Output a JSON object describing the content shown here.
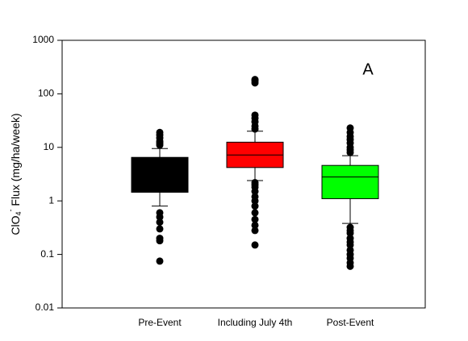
{
  "chart_data": {
    "type": "box",
    "y_label": {
      "base": "ClO",
      "sub": "4",
      "sup": "-",
      "rest": " Flux (mg/ha/week)"
    },
    "annotation": "A",
    "log_scale": true,
    "ylim": [
      0.01,
      1000
    ],
    "yticks": [
      0.01,
      0.1,
      1,
      10,
      100,
      1000
    ],
    "categories": [
      "Pre-Event",
      "Including July 4th",
      "Post-Event"
    ],
    "series": [
      {
        "color": "#000000",
        "q1": 1.45,
        "median": 3.5,
        "q3": 6.5,
        "whisker_low": 0.8,
        "whisker_high": 9.5,
        "outliers": [
          19,
          17,
          15,
          13,
          12,
          11,
          0.6,
          0.5,
          0.4,
          0.3,
          0.2,
          0.18,
          0.075
        ]
      },
      {
        "color": "#ff0000",
        "q1": 4.2,
        "median": 7.2,
        "q3": 12.5,
        "whisker_low": 2.4,
        "whisker_high": 20,
        "outliers": [
          185,
          175,
          160,
          40,
          35,
          30,
          25,
          22,
          2.2,
          2.0,
          1.8,
          1.5,
          1.2,
          1.0,
          0.8,
          0.6,
          0.45,
          0.35,
          0.28,
          0.15
        ]
      },
      {
        "color": "#00ff00",
        "q1": 1.1,
        "median": 2.8,
        "q3": 4.6,
        "whisker_low": 0.38,
        "whisker_high": 7,
        "outliers": [
          23,
          19,
          16,
          14,
          12,
          10,
          9,
          8,
          0.32,
          0.28,
          0.25,
          0.2,
          0.17,
          0.15,
          0.12,
          0.1,
          0.085,
          0.07,
          0.06
        ]
      }
    ]
  }
}
